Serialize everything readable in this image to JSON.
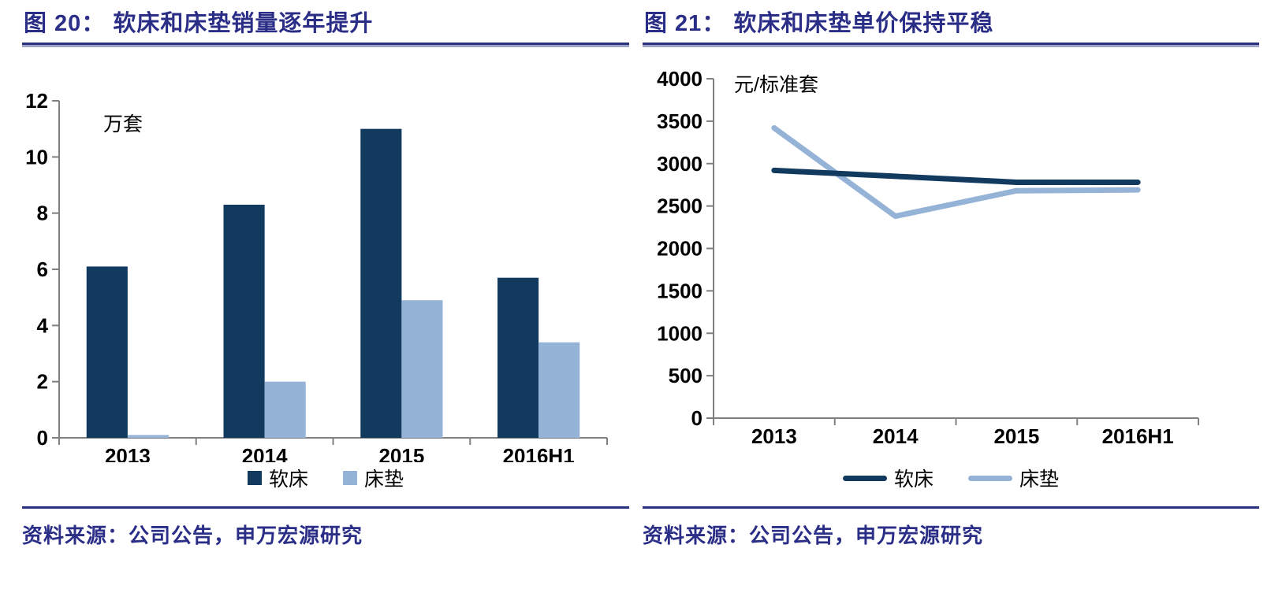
{
  "colors": {
    "page_background": "#ffffff",
    "title_text": "#2b2e87",
    "rule_line": "#28317e",
    "source_text": "#2b2e87",
    "axis_line": "#808080",
    "tick_label": "#000000",
    "series_softbed": "#12395e",
    "series_mattress": "#95b3d7"
  },
  "panels": [
    {
      "figure_label": "图 20：",
      "title": "软床和床垫销量逐年提升",
      "source_note": "资料来源：公司公告，申万宏源研究"
    },
    {
      "figure_label": "图 21：",
      "title": "软床和床垫单价保持平稳",
      "source_note": "资料来源：公司公告，申万宏源研究"
    }
  ],
  "chart_data": [
    {
      "type": "bar",
      "title": "软床和床垫销量逐年提升",
      "unit_label": "万套",
      "categories": [
        "2013",
        "2014",
        "2015",
        "2016H1"
      ],
      "series": [
        {
          "name": "软床",
          "color": "#12395e",
          "values": [
            6.1,
            8.3,
            11.0,
            5.7
          ]
        },
        {
          "name": "床垫",
          "color": "#95b3d7",
          "values": [
            0.1,
            2.0,
            4.9,
            3.4
          ]
        }
      ],
      "xlabel": "",
      "ylabel": "万套",
      "ylim": [
        0,
        12
      ],
      "ytick_step": 2,
      "grid": false,
      "legend_position": "bottom"
    },
    {
      "type": "line",
      "title": "软床和床垫单价保持平稳",
      "unit_label": "元/标准套",
      "categories": [
        "2013",
        "2014",
        "2015",
        "2016H1"
      ],
      "series": [
        {
          "name": "软床",
          "color": "#12395e",
          "values": [
            2920,
            2850,
            2780,
            2780
          ]
        },
        {
          "name": "床垫",
          "color": "#95b3d7",
          "values": [
            3420,
            2380,
            2680,
            2690
          ]
        }
      ],
      "xlabel": "",
      "ylabel": "元/标准套",
      "ylim": [
        0,
        4000
      ],
      "ytick_step": 500,
      "grid": false,
      "legend_position": "bottom"
    }
  ]
}
